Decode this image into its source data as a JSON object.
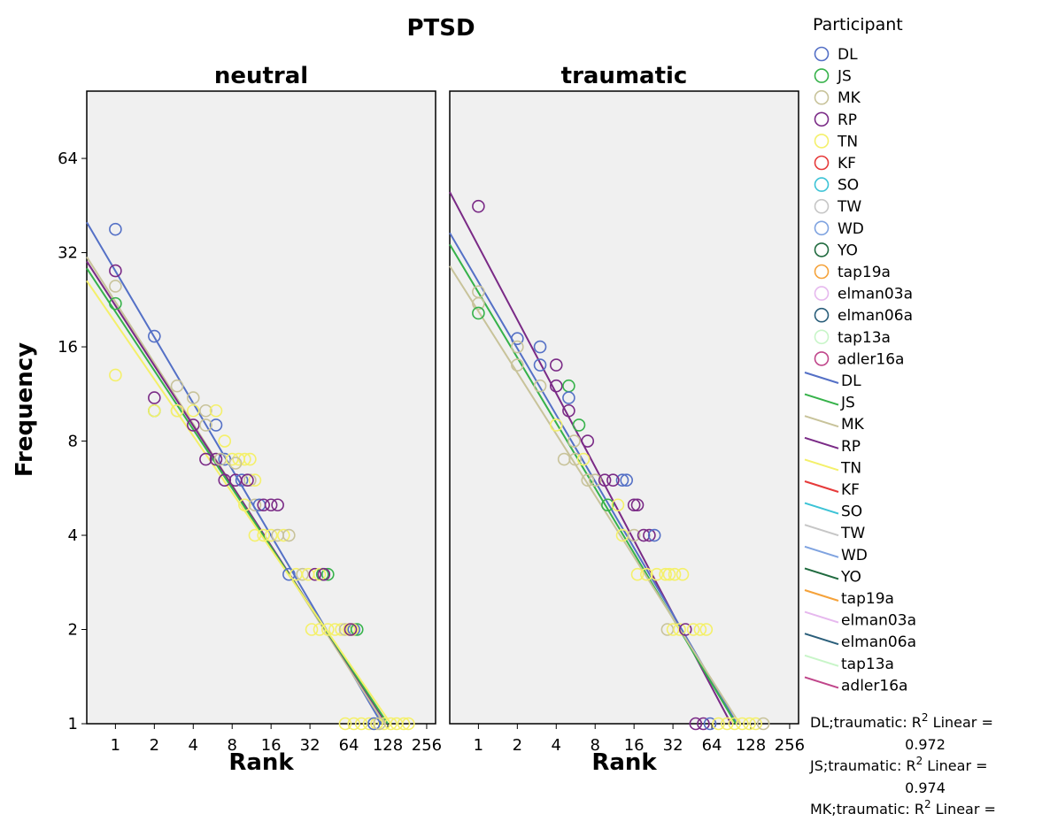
{
  "chart_data": {
    "type": "scatter",
    "title": "PTSD",
    "xlabel": "Rank",
    "ylabel": "Frequency",
    "x_scale": "log2",
    "y_scale": "log2",
    "x_ticks": [
      "1",
      "2",
      "4",
      "8",
      "16",
      "32",
      "64",
      "128",
      "256"
    ],
    "y_ticks": [
      "1",
      "2",
      "4",
      "8",
      "16",
      "32",
      "64"
    ],
    "xlim": [
      0.6,
      300
    ],
    "ylim": [
      1,
      105
    ],
    "grid": false,
    "legend_placement": "right",
    "legend_title": "Participant",
    "participants": [
      {
        "name": "DL",
        "color": "#5470c6"
      },
      {
        "name": "JS",
        "color": "#36b24a"
      },
      {
        "name": "MK",
        "color": "#c8c39a"
      },
      {
        "name": "RP",
        "color": "#7a2a86"
      },
      {
        "name": "TN",
        "color": "#f4f06a"
      },
      {
        "name": "KF",
        "color": "#e63a3a"
      },
      {
        "name": "SO",
        "color": "#3cc3d6"
      },
      {
        "name": "TW",
        "color": "#c6c6c6"
      },
      {
        "name": "WD",
        "color": "#7fa3e0"
      },
      {
        "name": "YO",
        "color": "#1f6a3e"
      },
      {
        "name": "tap19a",
        "color": "#f5a23a"
      },
      {
        "name": "elman03a",
        "color": "#e6b8ee"
      },
      {
        "name": "elman06a",
        "color": "#2a5e7a"
      },
      {
        "name": "tap13a",
        "color": "#c8f5c8"
      },
      {
        "name": "adler16a",
        "color": "#c0458a"
      }
    ],
    "panels": [
      {
        "title": "neutral",
        "points": [
          {
            "s": "DL",
            "x": 1,
            "y": 38
          },
          {
            "s": "RP",
            "x": 1,
            "y": 28
          },
          {
            "s": "MK",
            "x": 1,
            "y": 25
          },
          {
            "s": "JS",
            "x": 1,
            "y": 22
          },
          {
            "s": "TN",
            "x": 1,
            "y": 13
          },
          {
            "s": "DL",
            "x": 2,
            "y": 17.3
          },
          {
            "s": "RP",
            "x": 2,
            "y": 11
          },
          {
            "s": "JS",
            "x": 2,
            "y": 10
          },
          {
            "s": "TN",
            "x": 2,
            "y": 10
          },
          {
            "s": "MK",
            "x": 3,
            "y": 12
          },
          {
            "s": "MK",
            "x": 3,
            "y": 10
          },
          {
            "s": "TN",
            "x": 3,
            "y": 10
          },
          {
            "s": "MK",
            "x": 4,
            "y": 11
          },
          {
            "s": "TN",
            "x": 4,
            "y": 10
          },
          {
            "s": "RP",
            "x": 4,
            "y": 9
          },
          {
            "s": "MK",
            "x": 5,
            "y": 10
          },
          {
            "s": "TN",
            "x": 6,
            "y": 10
          },
          {
            "s": "DL",
            "x": 6,
            "y": 9
          },
          {
            "s": "MK",
            "x": 5,
            "y": 9
          },
          {
            "s": "TN",
            "x": 7,
            "y": 8
          },
          {
            "s": "DL",
            "x": 7,
            "y": 7
          },
          {
            "s": "RP",
            "x": 5,
            "y": 7
          },
          {
            "s": "RP",
            "x": 6,
            "y": 7
          },
          {
            "s": "MK",
            "x": 6.5,
            "y": 7
          },
          {
            "s": "TN",
            "x": 8,
            "y": 7
          },
          {
            "s": "TN",
            "x": 9,
            "y": 7
          },
          {
            "s": "TN",
            "x": 10,
            "y": 7
          },
          {
            "s": "TN",
            "x": 11,
            "y": 7
          },
          {
            "s": "MK",
            "x": 8.5,
            "y": 6.8
          },
          {
            "s": "RP",
            "x": 7,
            "y": 6
          },
          {
            "s": "RP",
            "x": 8.5,
            "y": 6
          },
          {
            "s": "DL",
            "x": 9.5,
            "y": 6
          },
          {
            "s": "MK",
            "x": 11,
            "y": 6
          },
          {
            "s": "TN",
            "x": 12,
            "y": 6
          },
          {
            "s": "RP",
            "x": 10.5,
            "y": 6
          },
          {
            "s": "TN",
            "x": 10,
            "y": 5
          },
          {
            "s": "MK",
            "x": 12,
            "y": 5
          },
          {
            "s": "DL",
            "x": 13,
            "y": 5
          },
          {
            "s": "RP",
            "x": 14,
            "y": 5
          },
          {
            "s": "RP",
            "x": 16,
            "y": 5
          },
          {
            "s": "RP",
            "x": 18,
            "y": 5
          },
          {
            "s": "TN",
            "x": 12,
            "y": 4
          },
          {
            "s": "TN",
            "x": 14,
            "y": 4
          },
          {
            "s": "TN",
            "x": 16,
            "y": 4
          },
          {
            "s": "MK",
            "x": 18,
            "y": 4
          },
          {
            "s": "TN",
            "x": 20,
            "y": 4
          },
          {
            "s": "MK",
            "x": 22,
            "y": 4
          },
          {
            "s": "DL",
            "x": 22,
            "y": 3
          },
          {
            "s": "TN",
            "x": 25,
            "y": 3
          },
          {
            "s": "MK",
            "x": 28,
            "y": 3
          },
          {
            "s": "TN",
            "x": 31,
            "y": 3
          },
          {
            "s": "RP",
            "x": 35,
            "y": 3
          },
          {
            "s": "JS",
            "x": 40,
            "y": 3
          },
          {
            "s": "JS",
            "x": 44,
            "y": 3
          },
          {
            "s": "TN",
            "x": 38,
            "y": 3
          },
          {
            "s": "RP",
            "x": 41,
            "y": 3
          },
          {
            "s": "TN",
            "x": 33,
            "y": 2
          },
          {
            "s": "TN",
            "x": 38,
            "y": 2
          },
          {
            "s": "TN",
            "x": 44,
            "y": 2
          },
          {
            "s": "TN",
            "x": 50,
            "y": 2
          },
          {
            "s": "TN",
            "x": 56,
            "y": 2
          },
          {
            "s": "MK",
            "x": 60,
            "y": 2
          },
          {
            "s": "TN",
            "x": 64,
            "y": 2
          },
          {
            "s": "DL",
            "x": 70,
            "y": 2
          },
          {
            "s": "JS",
            "x": 74,
            "y": 2
          },
          {
            "s": "TN",
            "x": 68,
            "y": 2
          },
          {
            "s": "RP",
            "x": 66,
            "y": 2
          },
          {
            "s": "TN",
            "x": 60,
            "y": 1
          },
          {
            "s": "TN",
            "x": 70,
            "y": 1
          },
          {
            "s": "TN",
            "x": 80,
            "y": 1
          },
          {
            "s": "TN",
            "x": 92,
            "y": 1
          },
          {
            "s": "TN",
            "x": 105,
            "y": 1
          },
          {
            "s": "TN",
            "x": 120,
            "y": 1
          },
          {
            "s": "TN",
            "x": 135,
            "y": 1
          },
          {
            "s": "TN",
            "x": 150,
            "y": 1
          },
          {
            "s": "TN",
            "x": 170,
            "y": 1
          },
          {
            "s": "TN",
            "x": 185,
            "y": 1
          },
          {
            "s": "DL",
            "x": 100,
            "y": 1
          },
          {
            "s": "MK",
            "x": 110,
            "y": 1
          }
        ],
        "fit_lines": [
          {
            "s": "DL",
            "x1": 0.6,
            "y1": 40,
            "x2": 115,
            "y2": 1
          },
          {
            "s": "MK",
            "x1": 0.6,
            "y1": 31,
            "x2": 120,
            "y2": 1
          },
          {
            "s": "RP",
            "x1": 0.6,
            "y1": 30,
            "x2": 125,
            "y2": 1
          },
          {
            "s": "JS",
            "x1": 0.6,
            "y1": 28.5,
            "x2": 128,
            "y2": 1
          },
          {
            "s": "TN",
            "x1": 0.6,
            "y1": 26,
            "x2": 135,
            "y2": 1
          }
        ]
      },
      {
        "title": "traumatic",
        "points": [
          {
            "s": "RP",
            "x": 1,
            "y": 45
          },
          {
            "s": "MK",
            "x": 1,
            "y": 24
          },
          {
            "s": "MK",
            "x": 1,
            "y": 22
          },
          {
            "s": "JS",
            "x": 1,
            "y": 20.5
          },
          {
            "s": "DL",
            "x": 2,
            "y": 17
          },
          {
            "s": "MK",
            "x": 2,
            "y": 16
          },
          {
            "s": "MK",
            "x": 2,
            "y": 14
          },
          {
            "s": "DL",
            "x": 3,
            "y": 16
          },
          {
            "s": "DL",
            "x": 3,
            "y": 14
          },
          {
            "s": "MK",
            "x": 3,
            "y": 12
          },
          {
            "s": "RP",
            "x": 4,
            "y": 14
          },
          {
            "s": "RP",
            "x": 4,
            "y": 12
          },
          {
            "s": "JS",
            "x": 5,
            "y": 12
          },
          {
            "s": "DL",
            "x": 5,
            "y": 11
          },
          {
            "s": "RP",
            "x": 5,
            "y": 10
          },
          {
            "s": "TN",
            "x": 4,
            "y": 9
          },
          {
            "s": "JS",
            "x": 6,
            "y": 9
          },
          {
            "s": "MK",
            "x": 5.5,
            "y": 8
          },
          {
            "s": "RP",
            "x": 7,
            "y": 8
          },
          {
            "s": "MK",
            "x": 4.6,
            "y": 7
          },
          {
            "s": "MK",
            "x": 5.6,
            "y": 7
          },
          {
            "s": "TN",
            "x": 6.5,
            "y": 7
          },
          {
            "s": "MK",
            "x": 7,
            "y": 6
          },
          {
            "s": "MK",
            "x": 8,
            "y": 6
          },
          {
            "s": "RP",
            "x": 9.5,
            "y": 6
          },
          {
            "s": "DL",
            "x": 13,
            "y": 6
          },
          {
            "s": "DL",
            "x": 14,
            "y": 6
          },
          {
            "s": "RP",
            "x": 11,
            "y": 6
          },
          {
            "s": "JS",
            "x": 10,
            "y": 5
          },
          {
            "s": "TN",
            "x": 12,
            "y": 5
          },
          {
            "s": "RP",
            "x": 16,
            "y": 5
          },
          {
            "s": "RP",
            "x": 17,
            "y": 5
          },
          {
            "s": "TN",
            "x": 13,
            "y": 4
          },
          {
            "s": "MK",
            "x": 16,
            "y": 4
          },
          {
            "s": "RP",
            "x": 19,
            "y": 4
          },
          {
            "s": "RP",
            "x": 21,
            "y": 4
          },
          {
            "s": "DL",
            "x": 23,
            "y": 4
          },
          {
            "s": "TN",
            "x": 17,
            "y": 3
          },
          {
            "s": "TN",
            "x": 20,
            "y": 3
          },
          {
            "s": "TN",
            "x": 24,
            "y": 3
          },
          {
            "s": "TN",
            "x": 28,
            "y": 3
          },
          {
            "s": "TN",
            "x": 33,
            "y": 3
          },
          {
            "s": "TN",
            "x": 38,
            "y": 3
          },
          {
            "s": "TN",
            "x": 30,
            "y": 3
          },
          {
            "s": "MK",
            "x": 29,
            "y": 2
          },
          {
            "s": "TN",
            "x": 32,
            "y": 2
          },
          {
            "s": "TN",
            "x": 36,
            "y": 2
          },
          {
            "s": "RP",
            "x": 40,
            "y": 2
          },
          {
            "s": "TN",
            "x": 46,
            "y": 2
          },
          {
            "s": "TN",
            "x": 52,
            "y": 2
          },
          {
            "s": "TN",
            "x": 58,
            "y": 2
          },
          {
            "s": "RP",
            "x": 48,
            "y": 1
          },
          {
            "s": "RP",
            "x": 55,
            "y": 1
          },
          {
            "s": "DL",
            "x": 62,
            "y": 1
          },
          {
            "s": "TN",
            "x": 72,
            "y": 1
          },
          {
            "s": "TN",
            "x": 84,
            "y": 1
          },
          {
            "s": "TN",
            "x": 96,
            "y": 1
          },
          {
            "s": "TN",
            "x": 110,
            "y": 1
          },
          {
            "s": "TN",
            "x": 125,
            "y": 1
          },
          {
            "s": "TN",
            "x": 140,
            "y": 1
          },
          {
            "s": "MK",
            "x": 160,
            "y": 1
          }
        ],
        "fit_lines": [
          {
            "s": "RP",
            "x1": 0.6,
            "y1": 50,
            "x2": 90,
            "y2": 1
          },
          {
            "s": "DL",
            "x1": 0.6,
            "y1": 37,
            "x2": 100,
            "y2": 1
          },
          {
            "s": "JS",
            "x1": 0.6,
            "y1": 34,
            "x2": 98,
            "y2": 1
          },
          {
            "s": "MK",
            "x1": 0.6,
            "y1": 29,
            "x2": 105,
            "y2": 1
          }
        ]
      }
    ],
    "fit_notes": [
      {
        "label": "DL;traumatic: R",
        "suffix": "Linear =",
        "value": "0.972"
      },
      {
        "label": "JS;traumatic: R",
        "suffix": "Linear =",
        "value": "0.974"
      },
      {
        "label": "MK;traumatic: R",
        "suffix": "Linear =",
        "value": ""
      }
    ],
    "r_squared_sup": "2"
  }
}
